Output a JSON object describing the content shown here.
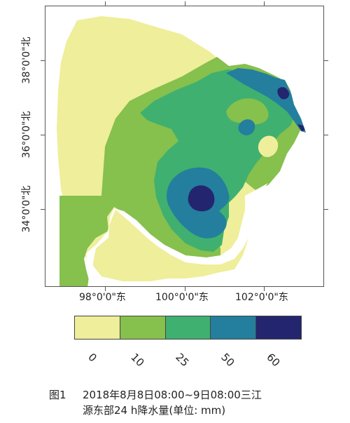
{
  "map": {
    "lat_labels": [
      "38°0'0\"北",
      "36°0'0\"北",
      "34°0'0\"北"
    ],
    "lon_labels": [
      "98°0'0\"东",
      "100°0'0\"东",
      "102°0'0\"东"
    ]
  },
  "legend": {
    "classes": [
      {
        "label": "0",
        "color": "#efee9a"
      },
      {
        "label": "10",
        "color": "#86c04d"
      },
      {
        "label": "25",
        "color": "#3fb06f"
      },
      {
        "label": "50",
        "color": "#237f9d"
      },
      {
        "label": "60",
        "color": "#24256f"
      }
    ]
  },
  "caption": {
    "figure_number": "图1",
    "line1": "2018年8月8日08:00~9日08:00三江",
    "line2": "源东部24 h降水量(单位: mm)"
  }
}
